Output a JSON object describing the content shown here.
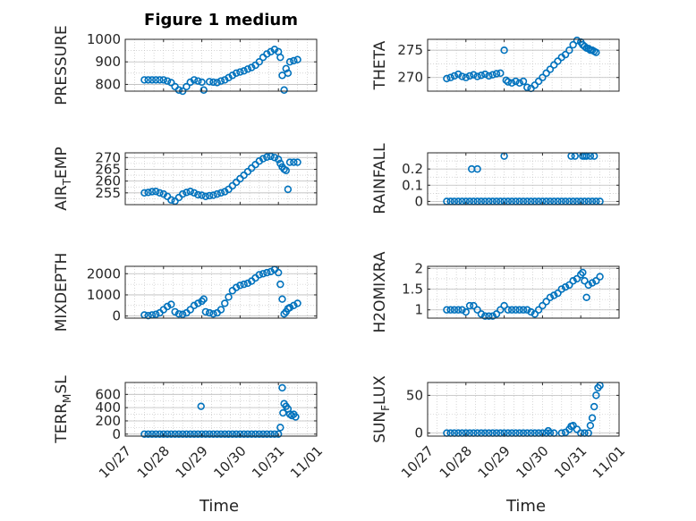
{
  "figure_title": "Figure 1 medium",
  "x_axis_label": "Time",
  "colors": {
    "marker": "#0072BD",
    "axes": "#262626",
    "grid": "#bdbdbd"
  },
  "chart_data": [
    {
      "type": "scatter",
      "ylabel": "PRESSURE",
      "ylabel_parts": [
        "PRESSURE"
      ],
      "ylim": [
        770,
        1000
      ],
      "yticks": [
        800,
        900,
        1000
      ],
      "ytick_labels": [
        "800",
        "900",
        "1000"
      ],
      "xlim": [
        0,
        5
      ],
      "xticks": [
        0,
        1,
        2,
        3,
        4,
        5
      ],
      "xtick_labels": [
        "10/27",
        "10/28",
        "10/29",
        "10/30",
        "10/31",
        "11/01"
      ],
      "show_xtick_labels": false,
      "grid": true,
      "x": [
        0.5,
        0.6,
        0.7,
        0.8,
        0.9,
        1.0,
        1.1,
        1.2,
        1.3,
        1.4,
        1.5,
        1.6,
        1.7,
        1.8,
        1.9,
        2.0,
        2.05,
        2.2,
        2.3,
        2.4,
        2.5,
        2.6,
        2.7,
        2.8,
        2.9,
        3.0,
        3.1,
        3.2,
        3.3,
        3.4,
        3.5,
        3.6,
        3.7,
        3.8,
        3.9,
        4.0,
        4.05,
        4.1,
        4.15,
        4.2,
        4.25,
        4.3,
        4.4,
        4.5
      ],
      "y": [
        820,
        820,
        820,
        820,
        820,
        820,
        815,
        808,
        790,
        775,
        770,
        790,
        810,
        820,
        815,
        810,
        775,
        812,
        810,
        808,
        815,
        820,
        830,
        840,
        850,
        855,
        860,
        868,
        875,
        885,
        900,
        920,
        935,
        945,
        955,
        945,
        920,
        840,
        775,
        870,
        850,
        900,
        905,
        910
      ]
    },
    {
      "type": "scatter",
      "ylabel": "THETA",
      "ylabel_parts": [
        "THETA"
      ],
      "ylim": [
        267.5,
        277
      ],
      "yticks": [
        270,
        275
      ],
      "ytick_labels": [
        "270",
        "275"
      ],
      "xlim": [
        0,
        5
      ],
      "xticks": [
        0,
        1,
        2,
        3,
        4,
        5
      ],
      "xtick_labels": [
        "10/27",
        "10/28",
        "10/29",
        "10/30",
        "10/31",
        "11/01"
      ],
      "show_xtick_labels": false,
      "grid": true,
      "x": [
        0.5,
        0.6,
        0.7,
        0.8,
        0.9,
        1.0,
        1.1,
        1.2,
        1.3,
        1.4,
        1.5,
        1.6,
        1.7,
        1.8,
        1.9,
        2.0,
        2.05,
        2.1,
        2.2,
        2.3,
        2.4,
        2.5,
        2.6,
        2.7,
        2.8,
        2.9,
        3.0,
        3.1,
        3.2,
        3.3,
        3.4,
        3.5,
        3.6,
        3.7,
        3.8,
        3.9,
        4.0,
        4.05,
        4.1,
        4.15,
        4.2,
        4.25,
        4.3,
        4.35,
        4.4
      ],
      "y": [
        269.8,
        270.0,
        270.3,
        270.6,
        270.2,
        270.0,
        270.3,
        270.5,
        270.2,
        270.4,
        270.6,
        270.3,
        270.5,
        270.7,
        270.8,
        275.0,
        269.5,
        269.2,
        269.0,
        269.3,
        269.0,
        269.3,
        268.2,
        268.0,
        268.6,
        269.3,
        270.0,
        270.8,
        271.5,
        272.3,
        273.0,
        273.7,
        274.2,
        275.0,
        276.0,
        276.8,
        276.5,
        276.0,
        275.7,
        275.4,
        275.3,
        275.0,
        275.0,
        274.8,
        274.6
      ]
    },
    {
      "type": "scatter",
      "ylabel": "AIR_TEMP",
      "ylabel_parts": [
        "AIR",
        "T",
        "EMP"
      ],
      "ylim": [
        250,
        272
      ],
      "yticks": [
        255,
        260,
        265,
        270
      ],
      "ytick_labels": [
        "255",
        "260",
        "265",
        "270"
      ],
      "xlim": [
        0,
        5
      ],
      "xticks": [
        0,
        1,
        2,
        3,
        4,
        5
      ],
      "xtick_labels": [
        "10/27",
        "10/28",
        "10/29",
        "10/30",
        "10/31",
        "11/01"
      ],
      "show_xtick_labels": false,
      "grid": true,
      "x": [
        0.5,
        0.6,
        0.7,
        0.8,
        0.9,
        1.0,
        1.1,
        1.2,
        1.3,
        1.4,
        1.5,
        1.6,
        1.7,
        1.8,
        1.9,
        2.0,
        2.1,
        2.2,
        2.3,
        2.4,
        2.5,
        2.6,
        2.7,
        2.8,
        2.9,
        3.0,
        3.1,
        3.2,
        3.3,
        3.4,
        3.5,
        3.6,
        3.7,
        3.8,
        3.9,
        4.0,
        4.05,
        4.1,
        4.15,
        4.2,
        4.25,
        4.3,
        4.4,
        4.5
      ],
      "y": [
        255,
        255.2,
        255.5,
        255.6,
        255,
        254.5,
        253.5,
        252,
        251.5,
        253,
        254.5,
        255.2,
        255.6,
        255,
        254.2,
        254,
        253.5,
        253.8,
        254,
        254.5,
        255,
        255.5,
        256.5,
        258,
        259.5,
        261,
        262.5,
        264,
        265.5,
        267,
        268.5,
        269.5,
        270.2,
        270.5,
        270,
        269.2,
        267.5,
        266,
        265,
        264.5,
        256.5,
        268,
        268,
        268
      ]
    },
    {
      "type": "scatter",
      "ylabel": "RAINFALL",
      "ylabel_parts": [
        "RAINFALL"
      ],
      "ylim": [
        -0.02,
        0.3
      ],
      "yticks": [
        0,
        0.1,
        0.2
      ],
      "ytick_labels": [
        "0",
        "0.1",
        "0.2"
      ],
      "xlim": [
        0,
        5
      ],
      "xticks": [
        0,
        1,
        2,
        3,
        4,
        5
      ],
      "xtick_labels": [
        "10/27",
        "10/28",
        "10/29",
        "10/30",
        "10/31",
        "11/01"
      ],
      "show_xtick_labels": false,
      "grid": true,
      "x": [
        0.5,
        0.6,
        0.7,
        0.8,
        0.9,
        1.0,
        1.1,
        1.2,
        1.3,
        1.4,
        1.5,
        1.6,
        1.7,
        1.8,
        1.9,
        2.0,
        2.1,
        2.2,
        2.3,
        2.4,
        2.5,
        2.6,
        2.7,
        2.8,
        2.9,
        3.0,
        3.1,
        3.2,
        3.3,
        3.4,
        3.5,
        3.6,
        3.7,
        3.8,
        3.9,
        4.0,
        4.1,
        4.2,
        4.3,
        4.4,
        4.5,
        1.15,
        1.3,
        2.0,
        3.75,
        3.85,
        4.05,
        4.1,
        4.15,
        4.25,
        4.35
      ],
      "y": [
        0,
        0,
        0,
        0,
        0,
        0,
        0,
        0,
        0,
        0,
        0,
        0,
        0,
        0,
        0,
        0,
        0,
        0,
        0,
        0,
        0,
        0,
        0,
        0,
        0,
        0,
        0,
        0,
        0,
        0,
        0,
        0,
        0,
        0,
        0,
        0,
        0,
        0,
        0,
        0,
        0,
        0.2,
        0.2,
        0.28,
        0.28,
        0.28,
        0.28,
        0.28,
        0.28,
        0.28,
        0.28
      ]
    },
    {
      "type": "scatter",
      "ylabel": "MIXDEPTH",
      "ylabel_parts": [
        "MIXDEPTH"
      ],
      "ylim": [
        -100,
        2350
      ],
      "yticks": [
        0,
        1000,
        2000
      ],
      "ytick_labels": [
        "0",
        "1000",
        "2000"
      ],
      "xlim": [
        0,
        5
      ],
      "xticks": [
        0,
        1,
        2,
        3,
        4,
        5
      ],
      "xtick_labels": [
        "10/27",
        "10/28",
        "10/29",
        "10/30",
        "10/31",
        "11/01"
      ],
      "show_xtick_labels": false,
      "grid": true,
      "x": [
        0.5,
        0.6,
        0.7,
        0.8,
        0.9,
        1.0,
        1.1,
        1.2,
        1.3,
        1.4,
        1.5,
        1.6,
        1.7,
        1.8,
        1.9,
        2.0,
        2.05,
        2.1,
        2.2,
        2.3,
        2.4,
        2.5,
        2.6,
        2.7,
        2.8,
        2.9,
        3.0,
        3.1,
        3.2,
        3.3,
        3.4,
        3.5,
        3.6,
        3.7,
        3.8,
        3.9,
        4.0,
        4.05,
        4.1,
        4.15,
        4.2,
        4.25,
        4.3,
        4.4,
        4.5
      ],
      "y": [
        50,
        20,
        50,
        80,
        150,
        300,
        450,
        550,
        200,
        100,
        80,
        150,
        300,
        500,
        600,
        700,
        800,
        200,
        150,
        100,
        150,
        300,
        600,
        900,
        1200,
        1350,
        1450,
        1500,
        1550,
        1650,
        1800,
        1950,
        2000,
        2050,
        2100,
        2200,
        2050,
        1500,
        800,
        100,
        200,
        350,
        400,
        500,
        600
      ]
    },
    {
      "type": "scatter",
      "ylabel": "H2OMIXRA",
      "ylabel_parts": [
        "H2OMIXRA"
      ],
      "ylim": [
        0.8,
        2.05
      ],
      "yticks": [
        1,
        1.5,
        2
      ],
      "ytick_labels": [
        "1",
        "1.5",
        "2"
      ],
      "xlim": [
        0,
        5
      ],
      "xticks": [
        0,
        1,
        2,
        3,
        4,
        5
      ],
      "xtick_labels": [
        "10/27",
        "10/28",
        "10/29",
        "10/30",
        "10/31",
        "11/01"
      ],
      "show_xtick_labels": false,
      "grid": true,
      "x": [
        0.5,
        0.6,
        0.7,
        0.8,
        0.9,
        1.0,
        1.1,
        1.2,
        1.3,
        1.4,
        1.5,
        1.6,
        1.7,
        1.8,
        1.9,
        2.0,
        2.1,
        2.2,
        2.3,
        2.4,
        2.5,
        2.6,
        2.7,
        2.8,
        2.9,
        3.0,
        3.1,
        3.2,
        3.3,
        3.4,
        3.5,
        3.6,
        3.7,
        3.8,
        3.9,
        4.0,
        4.05,
        4.1,
        4.15,
        4.2,
        4.3,
        4.4,
        4.5
      ],
      "y": [
        1.0,
        1.0,
        1.0,
        1.0,
        1.0,
        0.95,
        1.1,
        1.1,
        1.0,
        0.9,
        0.85,
        0.85,
        0.85,
        0.9,
        1.0,
        1.1,
        1.0,
        1.0,
        1.0,
        1.0,
        1.0,
        1.0,
        0.95,
        0.9,
        1.0,
        1.1,
        1.2,
        1.3,
        1.35,
        1.4,
        1.5,
        1.55,
        1.6,
        1.7,
        1.75,
        1.85,
        1.9,
        1.7,
        1.3,
        1.6,
        1.65,
        1.7,
        1.8
      ]
    },
    {
      "type": "scatter",
      "ylabel": "TERR_MSL",
      "ylabel_parts": [
        "TERR",
        "M",
        "SL"
      ],
      "ylim": [
        -30,
        780
      ],
      "yticks": [
        0,
        200,
        400,
        600
      ],
      "ytick_labels": [
        "0",
        "200",
        "400",
        "600"
      ],
      "xlim": [
        0,
        5
      ],
      "xticks": [
        0,
        1,
        2,
        3,
        4,
        5
      ],
      "xtick_labels": [
        "10/27",
        "10/28",
        "10/29",
        "10/30",
        "10/31",
        "11/01"
      ],
      "show_xtick_labels": true,
      "grid": true,
      "x": [
        0.5,
        0.6,
        0.7,
        0.8,
        0.9,
        1.0,
        1.1,
        1.2,
        1.3,
        1.4,
        1.5,
        1.6,
        1.7,
        1.8,
        1.9,
        2.0,
        2.1,
        2.2,
        2.3,
        2.4,
        2.5,
        2.6,
        2.7,
        2.8,
        2.9,
        3.0,
        3.1,
        3.2,
        3.3,
        3.4,
        3.5,
        3.6,
        3.7,
        3.8,
        3.9,
        4.0,
        1.98,
        4.05,
        4.1,
        4.12,
        4.15,
        4.2,
        4.25,
        4.3,
        4.35,
        4.4,
        4.45
      ],
      "y": [
        0,
        0,
        0,
        0,
        0,
        0,
        0,
        0,
        0,
        0,
        0,
        0,
        0,
        0,
        0,
        0,
        0,
        0,
        0,
        0,
        0,
        0,
        0,
        0,
        0,
        0,
        0,
        0,
        0,
        0,
        0,
        0,
        0,
        0,
        0,
        0,
        420,
        100,
        700,
        320,
        460,
        420,
        380,
        300,
        280,
        300,
        260
      ]
    },
    {
      "type": "scatter",
      "ylabel": "SUN_FLUX",
      "ylabel_parts": [
        "SUN",
        "F",
        "LUX"
      ],
      "ylim": [
        -4,
        67
      ],
      "yticks": [
        0,
        50
      ],
      "ytick_labels": [
        "0",
        "50"
      ],
      "xlim": [
        0,
        5
      ],
      "xticks": [
        0,
        1,
        2,
        3,
        4,
        5
      ],
      "xtick_labels": [
        "10/27",
        "10/28",
        "10/29",
        "10/30",
        "10/31",
        "11/01"
      ],
      "show_xtick_labels": true,
      "grid": true,
      "x": [
        0.5,
        0.6,
        0.7,
        0.8,
        0.9,
        1.0,
        1.1,
        1.2,
        1.3,
        1.4,
        1.5,
        1.6,
        1.7,
        1.8,
        1.9,
        2.0,
        2.1,
        2.2,
        2.3,
        2.4,
        2.5,
        2.6,
        2.7,
        2.8,
        2.9,
        3.0,
        3.1,
        3.15,
        3.2,
        3.3,
        3.5,
        3.6,
        3.7,
        3.75,
        3.8,
        3.9,
        4.0,
        4.1,
        4.2,
        4.25,
        4.3,
        4.35,
        4.4,
        4.45,
        4.5
      ],
      "y": [
        0,
        0,
        0,
        0,
        0,
        0,
        0,
        0,
        0,
        0,
        0,
        0,
        0,
        0,
        0,
        0,
        0,
        0,
        0,
        0,
        0,
        0,
        0,
        0,
        0,
        0,
        0,
        3,
        0,
        0,
        0,
        1,
        5,
        9,
        10,
        5,
        0,
        0,
        0,
        10,
        20,
        35,
        50,
        60,
        63
      ]
    }
  ]
}
